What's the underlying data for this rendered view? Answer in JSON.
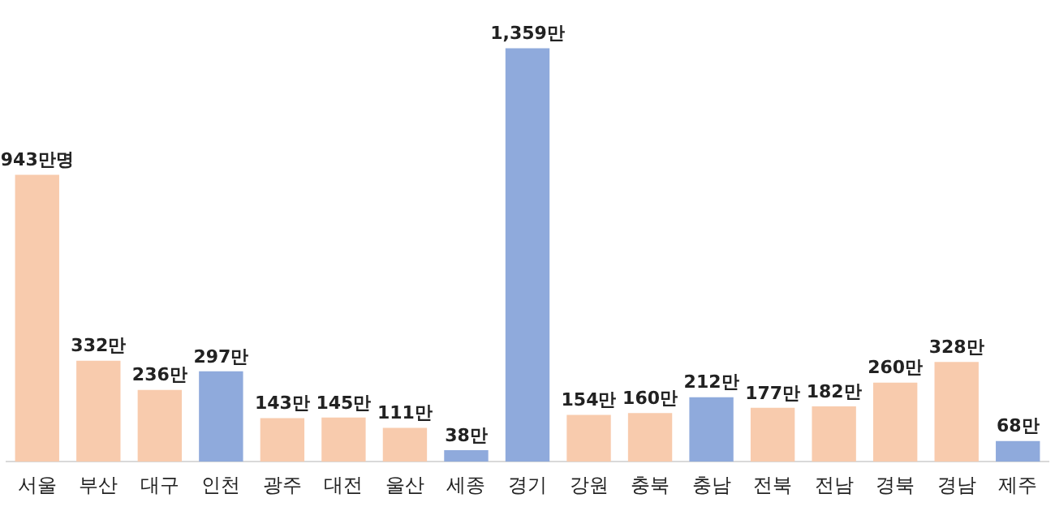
{
  "chart_data": {
    "type": "bar",
    "categories": [
      "서울",
      "부산",
      "대구",
      "인천",
      "광주",
      "대전",
      "울산",
      "세종",
      "경기",
      "강원",
      "충북",
      "충남",
      "전북",
      "전남",
      "경북",
      "경남",
      "제주"
    ],
    "values": [
      943,
      332,
      236,
      297,
      143,
      145,
      111,
      38,
      1359,
      154,
      160,
      212,
      177,
      182,
      260,
      328,
      68
    ],
    "colors": [
      "#f8cbad",
      "#f8cbad",
      "#f8cbad",
      "#8faadc",
      "#f8cbad",
      "#f8cbad",
      "#f8cbad",
      "#8faadc",
      "#8faadc",
      "#f8cbad",
      "#f8cbad",
      "#8faadc",
      "#f8cbad",
      "#f8cbad",
      "#f8cbad",
      "#f8cbad",
      "#8faadc"
    ],
    "value_labels": [
      "943만명",
      "332만",
      "236만",
      "297만",
      "143만",
      "145만",
      "111만",
      "38만",
      "1,359만",
      "154만",
      "160만",
      "212만",
      "177만",
      "182만",
      "260만",
      "328만",
      "68만"
    ],
    "grid": false,
    "legend": false
  }
}
